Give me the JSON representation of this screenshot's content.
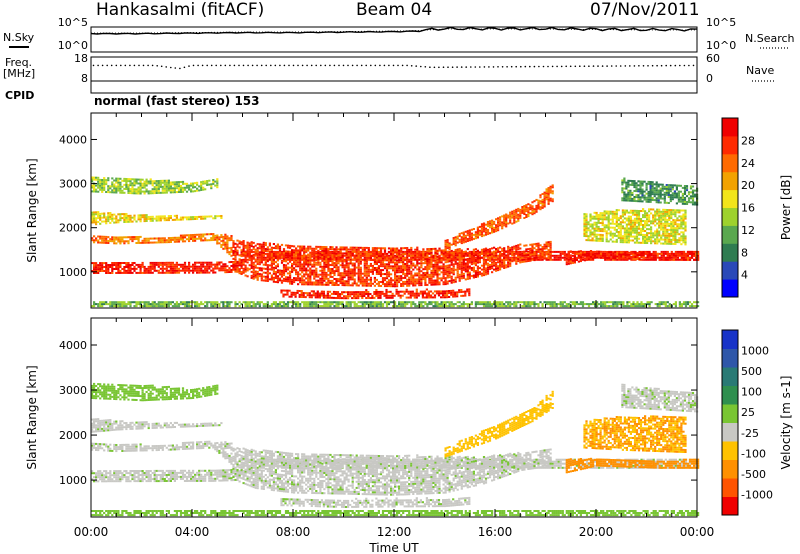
{
  "header": {
    "station": "Hankasalmi (fitACF)",
    "beam": "Beam 04",
    "date": "07/Nov/2011"
  },
  "colors": {
    "ink": "#000000",
    "power_scale": [
      "#0000ff",
      "#2a49b8",
      "#2f7c51",
      "#5aa84f",
      "#9ed22d",
      "#f2e51b",
      "#f2a200",
      "#ff6a00",
      "#ff2a00",
      "#f00000"
    ],
    "velocity_scale": [
      "#1733c8",
      "#2f57a9",
      "#297a75",
      "#2f8f4f",
      "#79c533",
      "#c8c8c4",
      "#ffc200",
      "#ff9000",
      "#ff5400",
      "#f00000"
    ]
  },
  "chart_data": [
    {
      "type": "line",
      "panel": "noise",
      "left_label": "N.Sky",
      "right_label": "N.Search",
      "left_ticks": [
        "10^5",
        "10^0"
      ],
      "right_ticks": [
        "10^5",
        "10^0"
      ],
      "series": [
        {
          "name": "N.Sky",
          "style": "solid",
          "x": [
            0,
            2,
            4,
            6,
            8,
            10,
            12,
            13,
            14,
            16,
            18,
            20,
            22,
            24
          ],
          "y": [
            3.6,
            3.6,
            3.7,
            3.8,
            3.8,
            3.9,
            4.0,
            4.1,
            4.4,
            4.4,
            4.4,
            4.3,
            4.2,
            4.2
          ]
        },
        {
          "name": "N.Search",
          "style": "dotted",
          "x": [
            0,
            2,
            4,
            6,
            8,
            10,
            12,
            13,
            14,
            16,
            18,
            20,
            22,
            24
          ],
          "y": [
            3.8,
            3.8,
            3.9,
            4.0,
            4.0,
            4.1,
            4.2,
            4.3,
            4.6,
            4.6,
            4.6,
            4.5,
            4.4,
            4.4
          ]
        }
      ],
      "ylim": [
        0,
        5
      ]
    },
    {
      "type": "scatter",
      "panel": "frequency",
      "left_label": "Freq.",
      "left_unit": "[MHz]",
      "right_label": "Nave",
      "left_ticks": [
        "18",
        "8"
      ],
      "right_ticks": [
        "60",
        "0"
      ],
      "series": [
        {
          "name": "Freq.",
          "style": "dotted",
          "x": [
            0,
            2.5,
            3.5,
            4,
            10,
            12.5,
            13.5,
            24
          ],
          "y": [
            14.5,
            14.5,
            13.2,
            14.5,
            14.5,
            14.5,
            13.7,
            14.5
          ]
        }
      ],
      "ylim": [
        8,
        18
      ]
    },
    {
      "type": "table",
      "panel": "cpid",
      "label": "CPID",
      "text": "normal (fast stereo) 153"
    },
    {
      "type": "heatmap",
      "panel": "power",
      "ylabel": "Slant Range [km]",
      "y_ticks": [
        "4000",
        "3000",
        "2000",
        "1000"
      ],
      "ylim": [
        180,
        4600
      ],
      "colorbar_label": "Power [dB]",
      "colorbar_ticks": [
        "28",
        "24",
        "20",
        "16",
        "12",
        "8",
        "4"
      ],
      "clim": [
        0,
        32
      ],
      "bands": [
        {
          "t": [
            0,
            4.8,
            5.8,
            6,
            24
          ],
          "r_lo": [
            950,
            960,
            980,
            1250,
            1250
          ],
          "r_hi": [
            1180,
            1200,
            1250,
            1450,
            1450
          ],
          "v": 30
        },
        {
          "t": [
            0,
            1,
            3,
            4.8,
            5.6
          ],
          "r_lo": [
            1650,
            1620,
            1650,
            1700,
            1300
          ],
          "r_hi": [
            1800,
            1760,
            1780,
            1850,
            1800
          ],
          "v": 24
        },
        {
          "t": [
            0,
            1,
            3,
            5.2
          ],
          "r_lo": [
            2050,
            2100,
            2150,
            2200
          ],
          "r_hi": [
            2350,
            2300,
            2250,
            2250
          ],
          "v": 18
        },
        {
          "t": [
            5.6,
            6.5,
            8,
            12,
            14,
            15.5,
            17,
            18.2
          ],
          "r_lo": [
            1000,
            800,
            700,
            650,
            700,
            900,
            1200,
            1300
          ],
          "r_hi": [
            1700,
            1650,
            1600,
            1550,
            1500,
            1500,
            1600,
            1700
          ],
          "v": 28
        },
        {
          "t": [
            7.5,
            10,
            14,
            15
          ],
          "r_lo": [
            420,
            380,
            400,
            450
          ],
          "r_hi": [
            600,
            560,
            580,
            620
          ],
          "v": 29
        },
        {
          "t": [
            14,
            16,
            17.5,
            18.3
          ],
          "r_lo": [
            1500,
            1900,
            2300,
            2600
          ],
          "r_hi": [
            1700,
            2200,
            2600,
            3000
          ],
          "v": 26
        },
        {
          "t": [
            18.8,
            20,
            22.5,
            24
          ],
          "r_lo": [
            1150,
            1300,
            1250,
            1250
          ],
          "r_hi": [
            1450,
            1450,
            1400,
            1450
          ],
          "v": 30
        },
        {
          "t": [
            19.5,
            21,
            23.5
          ],
          "r_lo": [
            1700,
            1650,
            1600
          ],
          "r_hi": [
            2300,
            2400,
            2400
          ],
          "v": 17
        },
        {
          "t": [
            0,
            2,
            4,
            5
          ],
          "r_lo": [
            2800,
            2750,
            2800,
            2900
          ],
          "r_hi": [
            3150,
            3100,
            3000,
            3100
          ],
          "v": 14
        },
        {
          "t": [
            21,
            24
          ],
          "r_lo": [
            2600,
            2500
          ],
          "r_hi": [
            3100,
            2900
          ],
          "v": 9
        },
        {
          "t": [
            0,
            6,
            12,
            18,
            24
          ],
          "r_lo": [
            200,
            200,
            200,
            200,
            200
          ],
          "r_hi": [
            320,
            300,
            300,
            330,
            320
          ],
          "v": 12
        }
      ]
    },
    {
      "type": "heatmap",
      "panel": "velocity",
      "ylabel": "Slant Range [km]",
      "y_ticks": [
        "4000",
        "3000",
        "2000",
        "1000"
      ],
      "ylim": [
        180,
        4600
      ],
      "xlabel": "Time UT",
      "x_ticks": [
        "00:00",
        "04:00",
        "08:00",
        "12:00",
        "16:00",
        "20:00",
        "00:00"
      ],
      "xlim": [
        0,
        24
      ],
      "colorbar_label": "Velocity [m s-1]",
      "colorbar_ticks": [
        "1000",
        "500",
        "100",
        "25",
        "-25",
        "-100",
        "-500",
        "-1000"
      ],
      "bands": [
        {
          "t": [
            0,
            4.8,
            5.8,
            6,
            24
          ],
          "r_lo": [
            950,
            960,
            980,
            1250,
            1250
          ],
          "r_hi": [
            1180,
            1200,
            1250,
            1450,
            1450
          ],
          "v": 0
        },
        {
          "t": [
            0,
            1,
            3,
            4.8,
            5.6
          ],
          "r_lo": [
            1650,
            1620,
            1650,
            1700,
            1300
          ],
          "r_hi": [
            1800,
            1760,
            1780,
            1850,
            1800
          ],
          "v": 0
        },
        {
          "t": [
            0,
            1,
            3,
            5.2
          ],
          "r_lo": [
            2050,
            2100,
            2150,
            2200
          ],
          "r_hi": [
            2350,
            2300,
            2250,
            2250
          ],
          "v": 0
        },
        {
          "t": [
            5.6,
            6.5,
            8,
            12,
            14,
            15.5,
            17,
            18.2
          ],
          "r_lo": [
            1000,
            800,
            700,
            650,
            700,
            900,
            1200,
            1300
          ],
          "r_hi": [
            1700,
            1650,
            1600,
            1550,
            1500,
            1500,
            1600,
            1700
          ],
          "v": 0
        },
        {
          "t": [
            7.5,
            10,
            14,
            15
          ],
          "r_lo": [
            420,
            380,
            400,
            450
          ],
          "r_hi": [
            600,
            560,
            580,
            620
          ],
          "v": 0
        },
        {
          "t": [
            14,
            16,
            17.5,
            18.3
          ],
          "r_lo": [
            1500,
            1900,
            2300,
            2600
          ],
          "r_hi": [
            1700,
            2200,
            2600,
            3000
          ],
          "v": -60
        },
        {
          "t": [
            18.8,
            20,
            22.5,
            24
          ],
          "r_lo": [
            1150,
            1300,
            1250,
            1250
          ],
          "r_hi": [
            1450,
            1450,
            1400,
            1450
          ],
          "v": -200
        },
        {
          "t": [
            19.5,
            21,
            23.5
          ],
          "r_lo": [
            1700,
            1650,
            1600
          ],
          "r_hi": [
            2300,
            2400,
            2400
          ],
          "v": -100
        },
        {
          "t": [
            0,
            2,
            4,
            5
          ],
          "r_lo": [
            2800,
            2750,
            2800,
            2900
          ],
          "r_hi": [
            3150,
            3100,
            3000,
            3100
          ],
          "v": 50
        },
        {
          "t": [
            21,
            24
          ],
          "r_lo": [
            2600,
            2500
          ],
          "r_hi": [
            3100,
            2900
          ],
          "v": 0
        },
        {
          "t": [
            0,
            6,
            12,
            18,
            24
          ],
          "r_lo": [
            200,
            200,
            200,
            200,
            200
          ],
          "r_hi": [
            320,
            300,
            300,
            330,
            320
          ],
          "v": 50
        }
      ]
    }
  ]
}
